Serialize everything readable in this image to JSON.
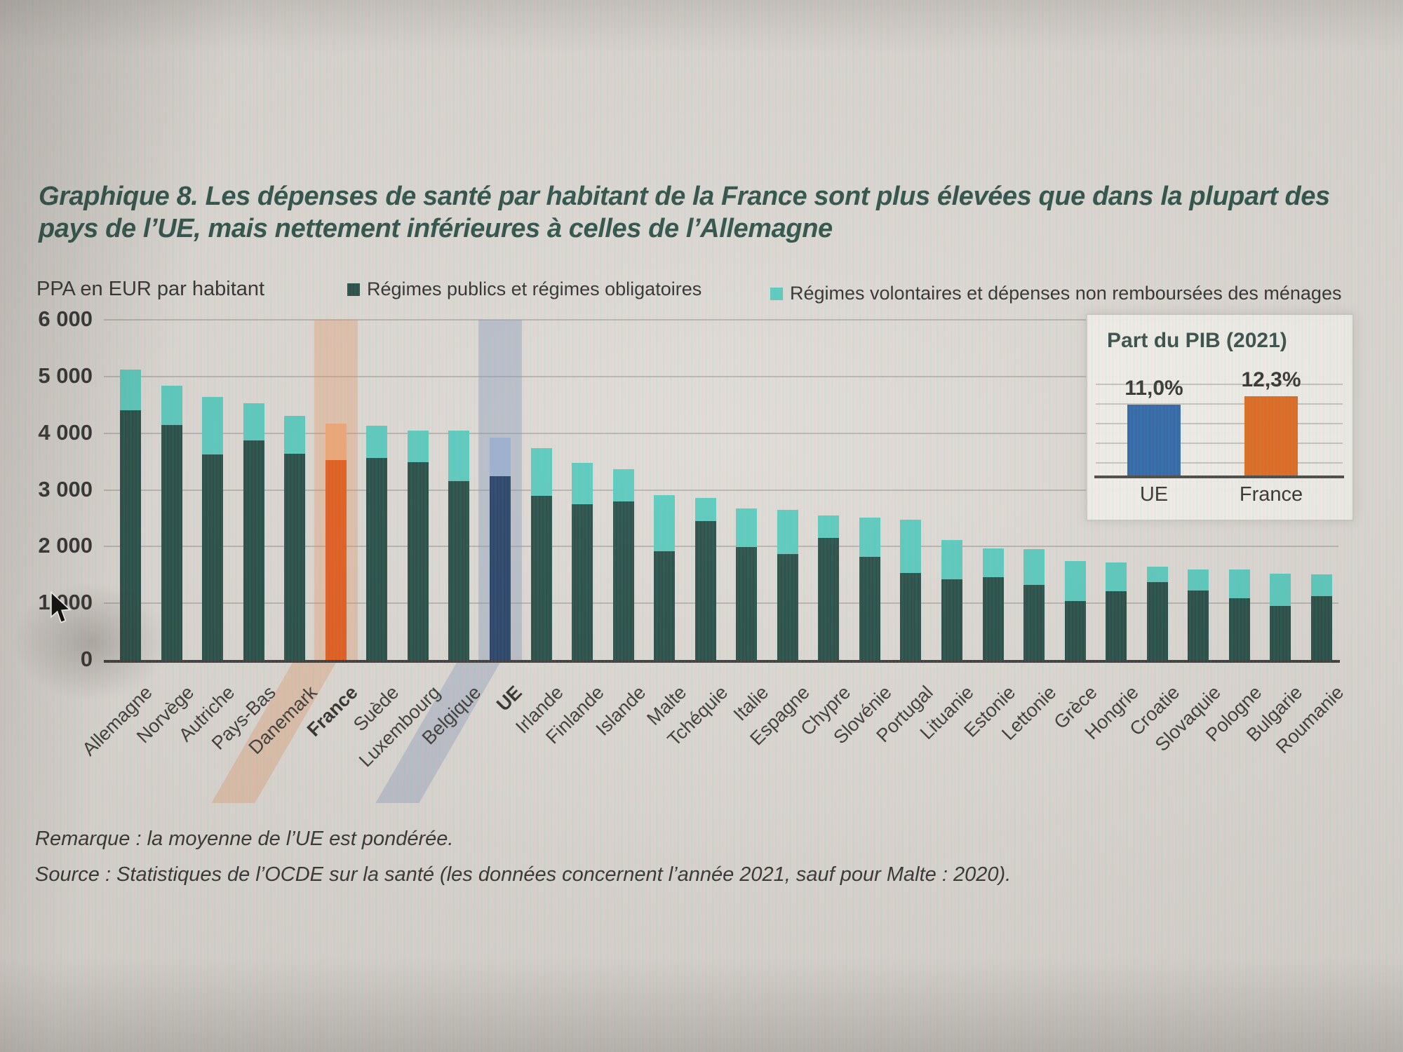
{
  "title": "Graphique 8. Les dépenses de santé par habitant de la France sont plus élevées que dans la plupart des pays de l’UE, mais nettement inférieures à celles de l’Allemagne",
  "unit_label": "PPA en EUR par habitant",
  "legend": [
    {
      "label": "Régimes publics et régimes obligatoires",
      "color": "#123f37"
    },
    {
      "label": "Régimes volontaires et dépenses non remboursées des ménages",
      "color": "#4cc8bb"
    }
  ],
  "chart_data": {
    "type": "bar",
    "stacked": true,
    "title": "Dépenses de santé par habitant, PPA en EUR",
    "ylabel": "PPA en EUR par habitant",
    "ylim": [
      0,
      6000
    ],
    "ytick_labels": [
      "0",
      "1 000",
      "2 000",
      "3 000",
      "4 000",
      "5 000",
      "6 000"
    ],
    "grid": "horizontal",
    "categories": [
      "Allemagne",
      "Norvège",
      "Autriche",
      "Pays-Bas",
      "Danemark",
      "France",
      "Suède",
      "Luxembourg",
      "Belgique",
      "UE",
      "Irlande",
      "Finlande",
      "Islande",
      "Malte",
      "Tchéquie",
      "Italie",
      "Espagne",
      "Chypre",
      "Slovénie",
      "Portugal",
      "Lituanie",
      "Estonie",
      "Lettonie",
      "Grèce",
      "Hongrie",
      "Croatie",
      "Slovaquie",
      "Pologne",
      "Bulgarie",
      "Roumanie"
    ],
    "series": [
      {
        "name": "Régimes publics et régimes obligatoires",
        "values": [
          4410,
          4150,
          3630,
          3870,
          3640,
          3520,
          3560,
          3490,
          3150,
          3240,
          2890,
          2750,
          2800,
          1920,
          2450,
          1990,
          1870,
          2150,
          1820,
          1530,
          1420,
          1460,
          1320,
          1040,
          1210,
          1370,
          1230,
          1090,
          950,
          1120
        ]
      },
      {
        "name": "Régimes volontaires et dépenses non remboursées des ménages",
        "values": [
          710,
          690,
          1010,
          660,
          670,
          650,
          570,
          560,
          900,
          680,
          850,
          730,
          560,
          990,
          410,
          680,
          780,
          400,
          690,
          950,
          690,
          510,
          630,
          700,
          510,
          270,
          370,
          500,
          570,
          390
        ]
      }
    ],
    "bold_categories": [
      "France",
      "UE"
    ],
    "colors": {
      "public": "#123f37",
      "voluntary": "#4cc8bb",
      "france_public": "#e1500a",
      "france_voluntary": "#eea06a",
      "ue_public": "#14335c",
      "ue_voluntary": "#94abce",
      "band_france": "rgba(230,135,75,0.32)",
      "band_france_diag": "rgba(222,150,100,0.40)",
      "band_ue": "rgba(115,140,180,0.38)",
      "band_ue_diag": "rgba(130,150,185,0.42)"
    }
  },
  "inset": {
    "title": "Part du PIB (2021)",
    "categories": [
      "UE",
      "France"
    ],
    "values": [
      11.0,
      12.3
    ],
    "value_labels": [
      "11,0%",
      "12,3%"
    ],
    "colors": [
      "#1c5ca3",
      "#de5f0e"
    ]
  },
  "notes": [
    "Remarque : la moyenne de l’UE est pondérée.",
    "Source : Statistiques de l’OCDE sur la santé (les données concernent l’année 2021, sauf pour Malte : 2020)."
  ]
}
